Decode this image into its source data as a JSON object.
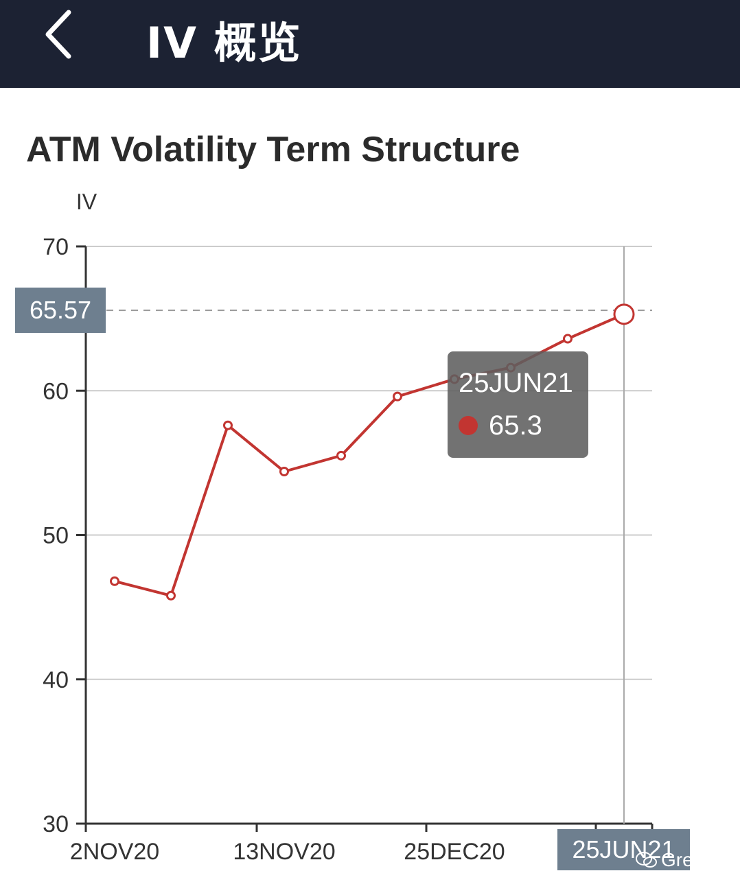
{
  "header": {
    "title": "IV 概览",
    "back_icon": "chevron-left-icon"
  },
  "colors": {
    "header_bg": "#1c2233",
    "series": "#c23531",
    "pointer_label_bg": "#6e7f8f"
  },
  "chart_data": {
    "type": "line",
    "title": "ATM Volatility Term Structure",
    "ylabel": "IV",
    "xlabel": "",
    "ylim": [
      30,
      70
    ],
    "y_ticks": [
      70,
      60,
      50,
      40,
      30
    ],
    "x_tick_labels": [
      "2NOV20",
      "13NOV20",
      "25DEC20"
    ],
    "categories": [
      "",
      "",
      "",
      "",
      "",
      "",
      "",
      "",
      "",
      ""
    ],
    "values": [
      46.8,
      45.8,
      57.6,
      54.4,
      55.5,
      59.6,
      60.8,
      61.6,
      63.6,
      65.3
    ],
    "grid": true,
    "axis_pointer": {
      "y_label": "65.57",
      "x_label": "25JUN21"
    },
    "tooltip": {
      "date": "25JUN21",
      "value": "65.3"
    }
  },
  "watermark": {
    "text": "Greeks",
    "icon": "wechat-icon"
  }
}
